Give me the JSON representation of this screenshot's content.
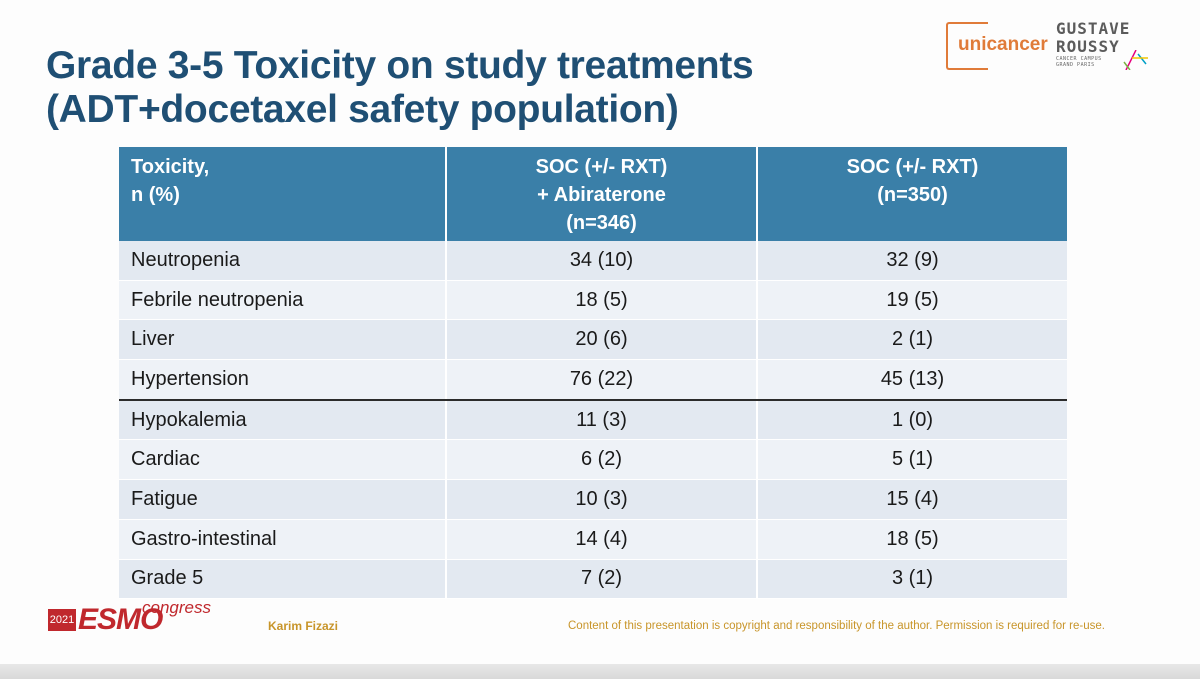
{
  "title": {
    "line1": "Grade 3-5 Toxicity on study treatments",
    "line2": "(ADT+docetaxel safety population)"
  },
  "logos": {
    "unicancer": "unicancer",
    "gustave_line1": "GUSTAVE",
    "gustave_line2": "ROUSSY",
    "gustave_line3": "CANCER CAMPUS",
    "gustave_line4": "GRAND PARIS",
    "esmo_year": "2021",
    "esmo_name": "ESMO",
    "esmo_congress": "congress"
  },
  "table": {
    "headers": {
      "col1_line1": "Toxicity,",
      "col1_line2": "n (%)",
      "col2_line1": "SOC (+/- RXT)",
      "col2_line2": "+ Abiraterone",
      "col2_line3": "(n=346)",
      "col3_line1": "SOC (+/- RXT)",
      "col3_line2": "(n=350)"
    },
    "rows": [
      {
        "toxicity": "Neutropenia",
        "abiraterone": "34 (10)",
        "soc": "32 (9)"
      },
      {
        "toxicity": "Febrile neutropenia",
        "abiraterone": "18 (5)",
        "soc": "19 (5)"
      },
      {
        "toxicity": "Liver",
        "abiraterone": "20 (6)",
        "soc": "2 (1)"
      },
      {
        "toxicity": "Hypertension",
        "abiraterone": "76 (22)",
        "soc": "45 (13)"
      },
      {
        "toxicity": "Hypokalemia",
        "abiraterone": "11 (3)",
        "soc": "1 (0)"
      },
      {
        "toxicity": "Cardiac",
        "abiraterone": "6 (2)",
        "soc": "5 (1)"
      },
      {
        "toxicity": "Fatigue",
        "abiraterone": "10 (3)",
        "soc": "15 (4)"
      },
      {
        "toxicity": "Gastro-intestinal",
        "abiraterone": "14 (4)",
        "soc": "18 (5)"
      },
      {
        "toxicity": "Grade 5",
        "abiraterone": "7 (2)",
        "soc": "3 (1)"
      }
    ]
  },
  "footer": {
    "author": "Karim Fizazi",
    "copyright": "Content of this presentation is copyright and responsibility of the author. Permission is required for re-use."
  },
  "colors": {
    "title": "#1f4f74",
    "header_bg": "#3a7fa8",
    "row_a": "#e3e9f1",
    "row_b": "#eef2f7",
    "unicancer_orange": "#e07b39",
    "esmo_red": "#c0282d",
    "footer_gold": "#c8952a"
  }
}
